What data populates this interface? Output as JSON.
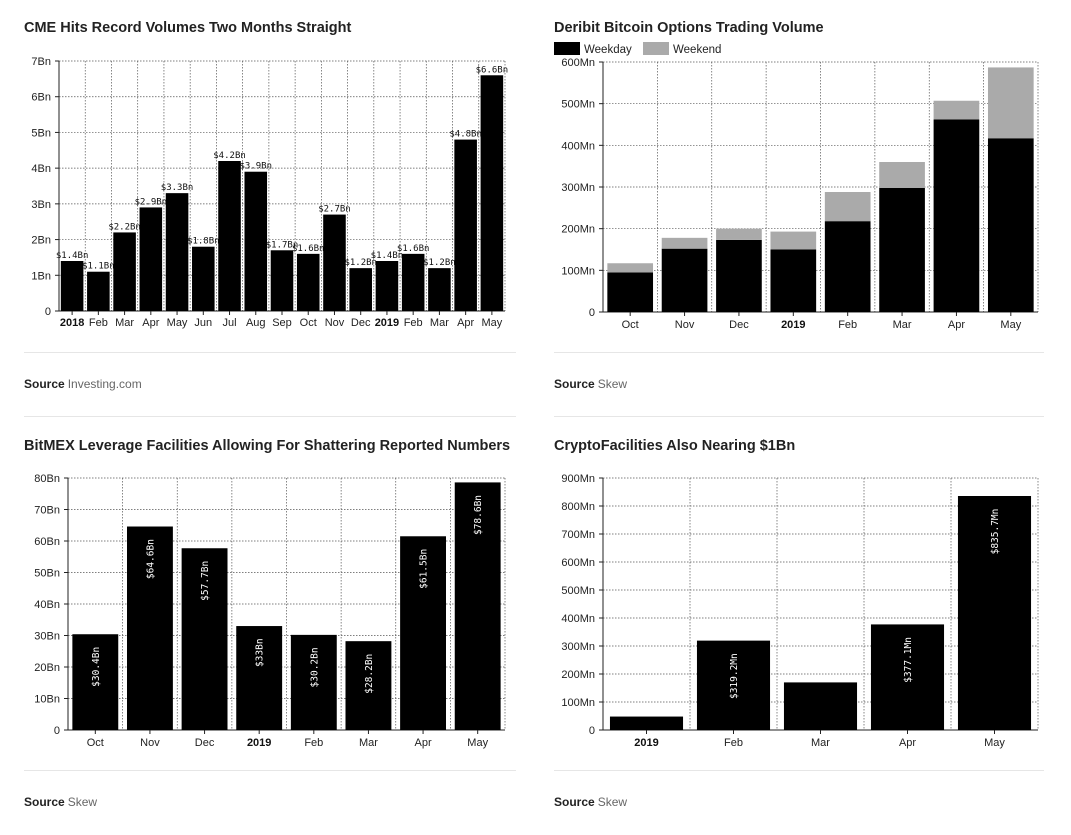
{
  "chart_data": [
    {
      "id": "cme",
      "type": "bar",
      "title": "CME Hits Record Volumes Two Months Straight",
      "categories": [
        "2018",
        "Feb",
        "Mar",
        "Apr",
        "May",
        "Jun",
        "Jul",
        "Aug",
        "Sep",
        "Oct",
        "Nov",
        "Dec",
        "2019",
        "Feb",
        "Mar",
        "Apr",
        "May"
      ],
      "bold_categories": [
        "2018",
        "2019"
      ],
      "values": [
        1.4,
        1.1,
        2.2,
        2.9,
        3.3,
        1.8,
        4.2,
        3.9,
        1.7,
        1.6,
        2.7,
        1.2,
        1.4,
        1.6,
        1.2,
        4.8,
        6.6
      ],
      "data_labels": [
        "$1.4Bn",
        "$1.1Bn",
        "$2.2Bn",
        "$2.9Bn",
        "$3.3Bn",
        "$1.8Bn",
        "$4.2Bn",
        "$3.9Bn",
        "$1.7Bn",
        "$1.6Bn",
        "$2.7Bn",
        "$1.2Bn",
        "$1.4Bn",
        "$1.6Bn",
        "$1.2Bn",
        "$4.8Bn",
        "$6.6Bn"
      ],
      "yticks": [
        0,
        1,
        2,
        3,
        4,
        5,
        6,
        7
      ],
      "ytick_labels": [
        "0",
        "1Bn",
        "2Bn",
        "3Bn",
        "4Bn",
        "5Bn",
        "6Bn",
        "7Bn"
      ],
      "ylim": [
        0,
        7
      ],
      "grid": true,
      "source_label": "Source",
      "source": "Investing.com"
    },
    {
      "id": "deribit",
      "type": "bar",
      "stacked": true,
      "title": "Deribit Bitcoin Options Trading Volume",
      "categories": [
        "Oct",
        "Nov",
        "Dec",
        "2019",
        "Feb",
        "Mar",
        "Apr",
        "May"
      ],
      "bold_categories": [
        "2019"
      ],
      "series": [
        {
          "name": "Weekday",
          "color": "#000000",
          "values": [
            95,
            152,
            173,
            150,
            218,
            298,
            462,
            417
          ]
        },
        {
          "name": "Weekend",
          "color": "#aaaaaa",
          "values": [
            22,
            26,
            27,
            43,
            70,
            62,
            45,
            170
          ]
        }
      ],
      "yticks": [
        0,
        100,
        200,
        300,
        400,
        500,
        600
      ],
      "ytick_labels": [
        "0",
        "100Mn",
        "200Mn",
        "300Mn",
        "400Mn",
        "500Mn",
        "600Mn"
      ],
      "ylim": [
        0,
        600
      ],
      "grid": true,
      "legend": "top-left",
      "source_label": "Source",
      "source": "Skew"
    },
    {
      "id": "bitmex",
      "type": "bar",
      "title": "BitMEX Leverage Facilities Allowing For Shattering Reported Numbers",
      "categories": [
        "Oct",
        "Nov",
        "Dec",
        "2019",
        "Feb",
        "Mar",
        "Apr",
        "May"
      ],
      "bold_categories": [
        "2019"
      ],
      "values": [
        30.4,
        64.6,
        57.7,
        33,
        30.2,
        28.2,
        61.5,
        78.6
      ],
      "data_labels": [
        "$30.4Bn",
        "$64.6Bn",
        "$57.7Bn",
        "$33Bn",
        "$30.2Bn",
        "$28.2Bn",
        "$61.5Bn",
        "$78.6Bn"
      ],
      "yticks": [
        0,
        10,
        20,
        30,
        40,
        50,
        60,
        70,
        80
      ],
      "ytick_labels": [
        "0",
        "10Bn",
        "20Bn",
        "30Bn",
        "40Bn",
        "50Bn",
        "60Bn",
        "70Bn",
        "80Bn"
      ],
      "ylim": [
        0,
        80
      ],
      "grid": true,
      "source_label": "Source",
      "source": "Skew"
    },
    {
      "id": "cryptofacilities",
      "type": "bar",
      "title": "CryptoFacilities Also Nearing $1Bn",
      "categories": [
        "2019",
        "Feb",
        "Mar",
        "Apr",
        "May"
      ],
      "bold_categories": [
        "2019"
      ],
      "values": [
        48,
        319.2,
        170,
        377.1,
        835.7
      ],
      "data_labels": [
        "",
        "$319.2Mn",
        "",
        "$377.1Mn",
        "$835.7Mn"
      ],
      "yticks": [
        0,
        100,
        200,
        300,
        400,
        500,
        600,
        700,
        800,
        900
      ],
      "ytick_labels": [
        "0",
        "100Mn",
        "200Mn",
        "300Mn",
        "400Mn",
        "500Mn",
        "600Mn",
        "700Mn",
        "800Mn",
        "900Mn"
      ],
      "ylim": [
        0,
        900
      ],
      "grid": true,
      "source_label": "Source",
      "source": "Skew"
    }
  ]
}
